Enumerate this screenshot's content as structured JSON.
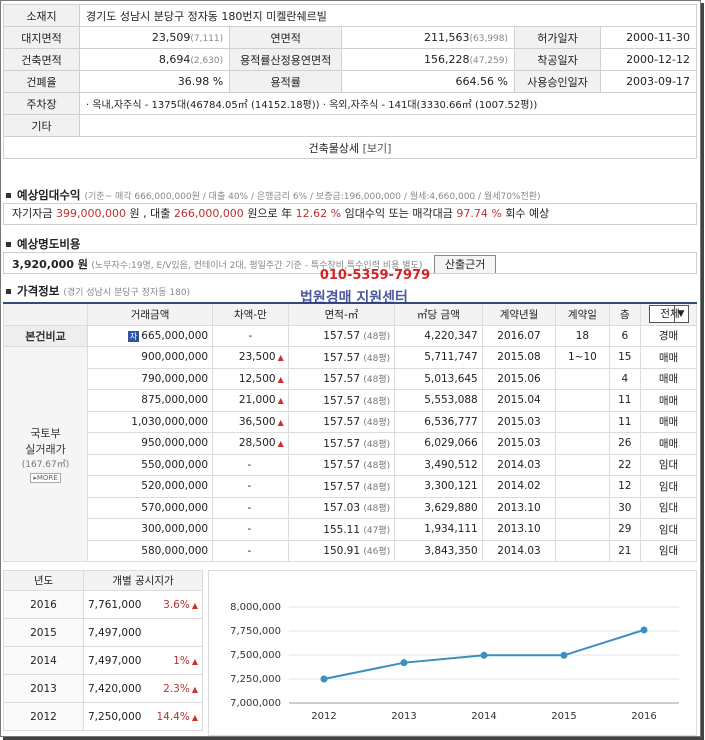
{
  "info": {
    "addr_label": "소재지",
    "addr": "경기도 성남시 분당구 정자동 180번지 미켈란쉐르빌",
    "land_label": "대지면적",
    "land": "23,509",
    "land_p": "(7,111)",
    "floor_label": "연면적",
    "floor": "211,563",
    "floor_p": "(63,998)",
    "permit_label": "허가일자",
    "permit": "2000-11-30",
    "build_label": "건축면적",
    "build": "8,694",
    "build_p": "(2,630)",
    "far_area_label": "용적률산정용연면적",
    "far_area": "156,228",
    "far_area_p": "(47,259)",
    "start_label": "착공일자",
    "start": "2000-12-12",
    "bcr_label": "건폐율",
    "bcr": "36.98 %",
    "far_label": "용적률",
    "far": "664.56 %",
    "approve_label": "사용승인일자",
    "approve": "2003-09-17",
    "parking_label": "주차장",
    "parking": "· 옥내,자주식 - 1375대(46784.05㎡ (14152.18평))   · 옥외,자주식 - 141대(3330.66㎡ (1007.52평))",
    "etc_label": "기타",
    "detail_label": "건축물상세",
    "detail_link": "[보기]"
  },
  "lease": {
    "title": "예상임대수익",
    "basis": "(기준~ 매각 666,000,000원 / 대출 40% / 은행금리 6% / 보증금:196,000,000 / 월세:4,660,000 / 월세70%전환)",
    "line_a": "자기자금",
    "own": "399,000,000",
    "line_b": "원 , 대출",
    "loan": "266,000,000",
    "line_c": "원으로 年",
    "rate": "12.62 %",
    "line_d": "임대수익 또는 매각대금",
    "ratio": "97.74 %",
    "line_e": "회수 예상"
  },
  "transfer": {
    "title": "예상명도비용",
    "amount": "3,920,000 원",
    "desc": "(노무자수:19명, E/V있음, 컨테이너 2대, 평일주간 기준 - 특수장비,특수인력 비용 별도)",
    "button": "산출근거"
  },
  "watermark": {
    "phone": "010-5359-7979",
    "name": "법원경매 지원센터"
  },
  "price": {
    "title": "가격정보",
    "sub": "(경기 성남시 분당구 정자동 180)",
    "headers": [
      "거래금액",
      "차액-만",
      "면적-㎡",
      "㎡당 금액",
      "계약년월",
      "계약일",
      "층"
    ],
    "filter": "전체",
    "self_label": "본건비교",
    "self": {
      "badge": "자",
      "amount": "665,000,000",
      "diff": "-",
      "area": "157.57",
      "py": "(48평)",
      "unit": "4,220,347",
      "ym": "2016.07",
      "day": "18",
      "floor": "6",
      "type": "경매"
    },
    "side_label_1": "국토부",
    "side_label_2": "실거래가",
    "side_area": "(167.67㎡)",
    "more": "MORE",
    "rows": [
      {
        "amount": "900,000,000",
        "diff": "23,500",
        "up": "▲",
        "area": "157.57",
        "py": "(48평)",
        "unit": "5,711,747",
        "ym": "2015.08",
        "day": "1~10",
        "floor": "15",
        "type": "매매"
      },
      {
        "amount": "790,000,000",
        "diff": "12,500",
        "up": "▲",
        "area": "157.57",
        "py": "(48평)",
        "unit": "5,013,645",
        "ym": "2015.06",
        "day": "",
        "floor": "4",
        "type": "매매"
      },
      {
        "amount": "875,000,000",
        "diff": "21,000",
        "up": "▲",
        "area": "157.57",
        "py": "(48평)",
        "unit": "5,553,088",
        "ym": "2015.04",
        "day": "",
        "floor": "11",
        "type": "매매"
      },
      {
        "amount": "1,030,000,000",
        "diff": "36,500",
        "up": "▲",
        "area": "157.57",
        "py": "(48평)",
        "unit": "6,536,777",
        "ym": "2015.03",
        "day": "",
        "floor": "11",
        "type": "매매"
      },
      {
        "amount": "950,000,000",
        "diff": "28,500",
        "up": "▲",
        "area": "157.57",
        "py": "(48평)",
        "unit": "6,029,066",
        "ym": "2015.03",
        "day": "",
        "floor": "26",
        "type": "매매"
      },
      {
        "amount": "550,000,000",
        "diff": "-",
        "up": "",
        "area": "157.57",
        "py": "(48평)",
        "unit": "3,490,512",
        "ym": "2014.03",
        "day": "",
        "floor": "22",
        "type": "임대"
      },
      {
        "amount": "520,000,000",
        "diff": "-",
        "up": "",
        "area": "157.57",
        "py": "(48평)",
        "unit": "3,300,121",
        "ym": "2014.02",
        "day": "",
        "floor": "12",
        "type": "임대"
      },
      {
        "amount": "570,000,000",
        "diff": "-",
        "up": "",
        "area": "157.03",
        "py": "(48평)",
        "unit": "3,629,880",
        "ym": "2013.10",
        "day": "",
        "floor": "30",
        "type": "임대"
      },
      {
        "amount": "300,000,000",
        "diff": "-",
        "up": "",
        "area": "155.11",
        "py": "(47평)",
        "unit": "1,934,111",
        "ym": "2013.10",
        "day": "",
        "floor": "29",
        "type": "임대"
      },
      {
        "amount": "580,000,000",
        "diff": "-",
        "up": "",
        "area": "150.91",
        "py": "(46평)",
        "unit": "3,843,350",
        "ym": "2014.03",
        "day": "",
        "floor": "21",
        "type": "임대"
      }
    ]
  },
  "land_price": {
    "head_year": "년도",
    "head_price": "개별 공시지가",
    "rows": [
      {
        "year": "2016",
        "price": "7,761,000",
        "chg": "3.6%",
        "up": "▲"
      },
      {
        "year": "2015",
        "price": "7,497,000",
        "chg": "",
        "up": ""
      },
      {
        "year": "2014",
        "price": "7,497,000",
        "chg": "1%",
        "up": "▲"
      },
      {
        "year": "2013",
        "price": "7,420,000",
        "chg": "2.3%",
        "up": "▲"
      },
      {
        "year": "2012",
        "price": "7,250,000",
        "chg": "14.4%",
        "up": "▲"
      }
    ]
  },
  "chart_data": {
    "type": "line",
    "x": [
      "2012",
      "2013",
      "2014",
      "2015",
      "2016"
    ],
    "series": [
      {
        "values": [
          7250000,
          7420000,
          7497000,
          7497000,
          7761000
        ]
      }
    ],
    "yticks": [
      "7,000,000",
      "7,250,000",
      "7,500,000",
      "7,750,000",
      "8,000,000"
    ],
    "ylim": [
      7000000,
      8000000
    ],
    "grid": true,
    "color": "#3a8fc2"
  }
}
